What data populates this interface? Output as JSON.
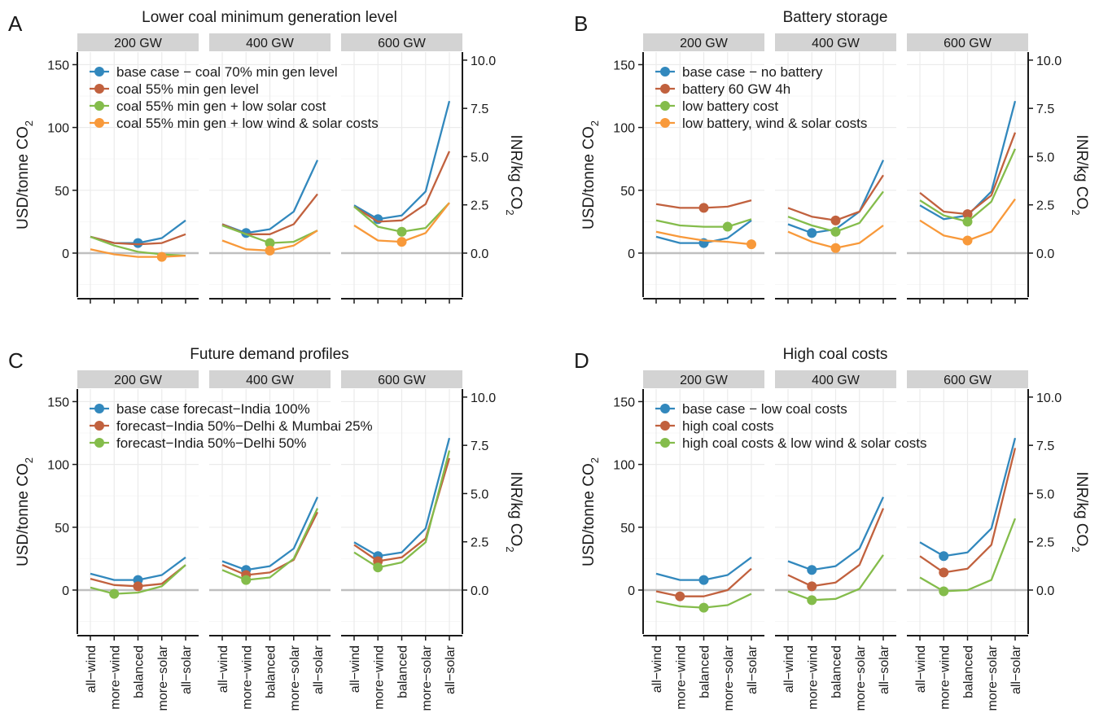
{
  "categories": [
    "all−wind",
    "more−wind",
    "balanced",
    "more−solar",
    "all−solar"
  ],
  "facets": [
    "200 GW",
    "400 GW",
    "600 GW"
  ],
  "y_axis": {
    "label": "USD/tonne CO",
    "label_sub": "2",
    "lim": [
      -35,
      160
    ],
    "ticks": [
      0,
      50,
      100,
      150
    ]
  },
  "y2_axis": {
    "label": "INR/kg CO",
    "label_sub": "2",
    "ticks": [
      "0.0",
      "2.5",
      "5.0",
      "7.5",
      "10.0"
    ],
    "tick_values_usd": [
      0,
      38.4,
      76.8,
      115.2,
      153.6
    ]
  },
  "colors": {
    "blue": "#3288bd",
    "red": "#c1613e",
    "green": "#84bc4b",
    "orange": "#f8993a",
    "strip": "#d3d3d3",
    "grid": "#ebebeb",
    "zero": "#bfbfbf"
  },
  "chart_data": [
    {
      "type": "line",
      "panel_letter": "A",
      "title": "Lower coal minimum generation level",
      "series": [
        {
          "name": "base case − coal 70% min gen level",
          "color": "#3288bd",
          "values": [
            [
              13,
              8,
              8,
              12,
              26
            ],
            [
              23,
              16,
              19,
              33,
              74
            ],
            [
              38,
              27,
              30,
              49,
              121
            ]
          ],
          "marker": [
            2,
            1,
            1
          ]
        },
        {
          "name": "coal 55% min gen level",
          "color": "#c1613e",
          "values": [
            [
              13,
              8,
              7,
              8,
              15
            ],
            [
              23,
              15,
              15,
              23,
              47
            ],
            [
              37,
              25,
              26,
              39,
              81
            ]
          ],
          "marker": [
            null,
            null,
            null
          ]
        },
        {
          "name": "coal 55% min gen + low solar cost",
          "color": "#84bc4b",
          "values": [
            [
              13,
              6,
              1,
              -1,
              -2
            ],
            [
              22,
              15,
              8,
              9,
              18
            ],
            [
              37,
              21,
              17,
              20,
              40
            ]
          ],
          "marker": [
            null,
            2,
            2
          ]
        },
        {
          "name": "coal 55% min gen + low wind & solar costs",
          "color": "#f8993a",
          "values": [
            [
              3,
              -1,
              -3,
              -3,
              -2
            ],
            [
              10,
              3,
              2,
              6,
              18
            ],
            [
              22,
              10,
              9,
              16,
              40
            ]
          ],
          "marker": [
            3,
            2,
            2
          ]
        }
      ]
    },
    {
      "type": "line",
      "panel_letter": "B",
      "title": "Battery storage",
      "series": [
        {
          "name": "base case − no battery",
          "color": "#3288bd",
          "values": [
            [
              13,
              8,
              8,
              12,
              26
            ],
            [
              23,
              16,
              19,
              33,
              74
            ],
            [
              38,
              27,
              30,
              49,
              121
            ]
          ],
          "marker": [
            2,
            1,
            null
          ]
        },
        {
          "name": "battery 60 GW 4h",
          "color": "#c1613e",
          "values": [
            [
              39,
              36,
              36,
              37,
              42
            ],
            [
              36,
              29,
              26,
              33,
              62
            ],
            [
              48,
              33,
              31,
              46,
              96
            ]
          ],
          "marker": [
            2,
            2,
            2
          ]
        },
        {
          "name": "low battery cost",
          "color": "#84bc4b",
          "values": [
            [
              26,
              22,
              21,
              21,
              27
            ],
            [
              29,
              22,
              17,
              24,
              49
            ],
            [
              42,
              30,
              25,
              41,
              83
            ]
          ],
          "marker": [
            3,
            2,
            2
          ]
        },
        {
          "name": "low battery, wind & solar costs",
          "color": "#f8993a",
          "values": [
            [
              17,
              13,
              10,
              9,
              7
            ],
            [
              17,
              9,
              4,
              8,
              22
            ],
            [
              26,
              14,
              10,
              17,
              43
            ]
          ],
          "marker": [
            4,
            2,
            2
          ]
        }
      ]
    },
    {
      "type": "line",
      "panel_letter": "C",
      "title": "Future demand profiles",
      "series": [
        {
          "name": "base case forecast−India 100%",
          "color": "#3288bd",
          "values": [
            [
              13,
              8,
              8,
              12,
              26
            ],
            [
              23,
              16,
              19,
              33,
              74
            ],
            [
              38,
              27,
              30,
              49,
              121
            ]
          ],
          "marker": [
            2,
            1,
            1
          ]
        },
        {
          "name": "forecast−India 50%−Delhi & Mumbai 25%",
          "color": "#c1613e",
          "values": [
            [
              9,
              4,
              3,
              5,
              20
            ],
            [
              20,
              12,
              14,
              24,
              62
            ],
            [
              36,
              23,
              26,
              41,
              105
            ]
          ],
          "marker": [
            2,
            1,
            1
          ]
        },
        {
          "name": "forecast−India 50%−Delhi 50%",
          "color": "#84bc4b",
          "values": [
            [
              2,
              -3,
              -2,
              3,
              20
            ],
            [
              16,
              8,
              10,
              25,
              65
            ],
            [
              30,
              18,
              22,
              38,
              111
            ]
          ],
          "marker": [
            1,
            1,
            1
          ]
        }
      ]
    },
    {
      "type": "line",
      "panel_letter": "D",
      "title": "High coal costs",
      "series": [
        {
          "name": "base case − low coal costs",
          "color": "#3288bd",
          "values": [
            [
              13,
              8,
              8,
              12,
              26
            ],
            [
              23,
              16,
              19,
              33,
              74
            ],
            [
              38,
              27,
              30,
              49,
              121
            ]
          ],
          "marker": [
            2,
            1,
            1
          ]
        },
        {
          "name": "high coal costs",
          "color": "#c1613e",
          "values": [
            [
              -1,
              -5,
              -5,
              0,
              17
            ],
            [
              12,
              3,
              6,
              20,
              65
            ],
            [
              27,
              14,
              17,
              36,
              113
            ]
          ],
          "marker": [
            1,
            1,
            1
          ]
        },
        {
          "name": "high coal costs & low wind & solar costs",
          "color": "#84bc4b",
          "values": [
            [
              -9,
              -13,
              -14,
              -12,
              -3
            ],
            [
              -1,
              -8,
              -7,
              1,
              28
            ],
            [
              10,
              -1,
              0,
              8,
              57
            ]
          ],
          "marker": [
            2,
            1,
            1
          ]
        }
      ]
    }
  ]
}
